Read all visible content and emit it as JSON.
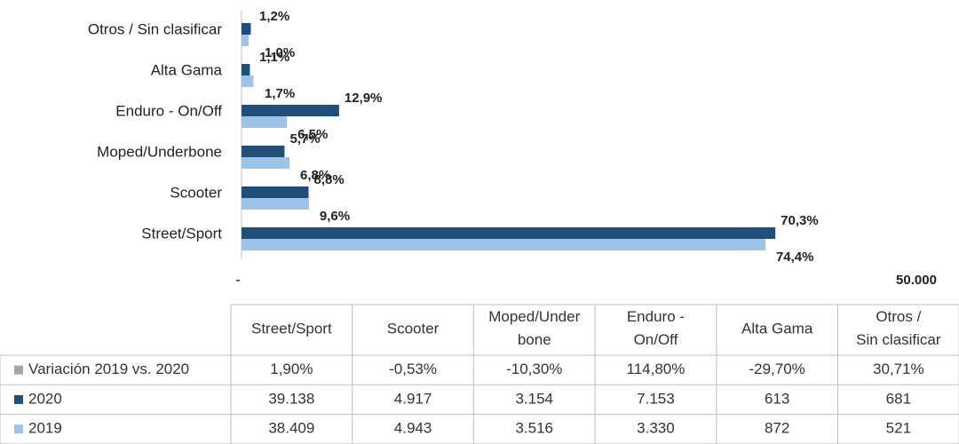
{
  "chart_data": {
    "type": "bar",
    "orientation": "horizontal",
    "categories": [
      "Street/Sport",
      "Scooter",
      "Moped/Underbone",
      "Enduro - On/Off",
      "Alta Gama",
      "Otros / Sin clasificar"
    ],
    "xlim": [
      0,
      50000
    ],
    "xticks": [
      {
        "value": 0,
        "label": "-"
      },
      {
        "value": 50000,
        "label": "50.000"
      }
    ],
    "series": [
      {
        "name": "Variación 2019 vs. 2020",
        "color": "#a6a6a6",
        "table_only": true,
        "values": [
          1.9,
          -0.53,
          -10.3,
          114.8,
          -29.7,
          30.71
        ],
        "value_labels": [
          "1,90%",
          "-0,53%",
          "-10,30%",
          "114,80%",
          "-29,70%",
          "30,71%"
        ]
      },
      {
        "name": "2020",
        "color": "#1f4e79",
        "values": [
          39138,
          4917,
          3154,
          7153,
          613,
          681
        ],
        "value_labels": [
          "39.138",
          "4.917",
          "3.154",
          "7.153",
          "613",
          "681"
        ],
        "shares": [
          70.3,
          8.8,
          5.7,
          12.9,
          1.1,
          1.2
        ],
        "share_labels": [
          "70,3%",
          "8,8%",
          "5,7%",
          "12,9%",
          "1,1%",
          "1,2%"
        ]
      },
      {
        "name": "2019",
        "color": "#9dc3e6",
        "values": [
          38409,
          4943,
          3516,
          3330,
          872,
          521
        ],
        "value_labels": [
          "38.409",
          "4.943",
          "3.516",
          "3.330",
          "872",
          "521"
        ],
        "shares": [
          74.4,
          9.6,
          6.8,
          6.5,
          1.7,
          1.0
        ],
        "share_labels": [
          "74,4%",
          "9,6%",
          "6,8%",
          "6,5%",
          "1,7%",
          "1,0%"
        ]
      }
    ]
  }
}
